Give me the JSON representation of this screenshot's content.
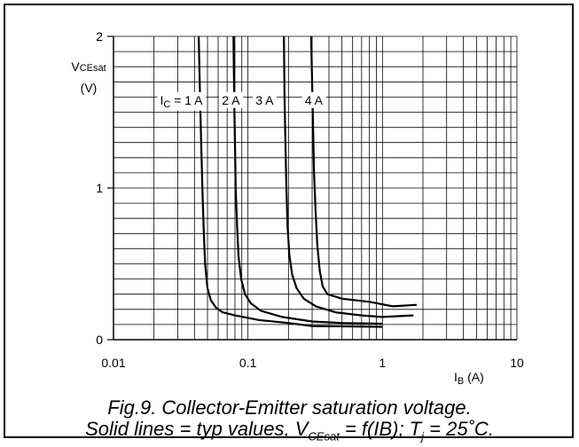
{
  "chart_data": {
    "type": "line",
    "x_scale": "log",
    "xlim": [
      0.01,
      10
    ],
    "ylim": [
      0,
      2
    ],
    "x_ticks": [
      "0.01",
      "0.1",
      "1",
      "10"
    ],
    "y_ticks": [
      "0",
      "1",
      "2"
    ],
    "xlabel_main": "I",
    "xlabel_sub": "B",
    "xlabel_unit": " (A)",
    "ylabel_main": "V",
    "ylabel_sub": "CEsat",
    "ylabel_unit": "(V)",
    "grid": true,
    "series_labels": [
      {
        "prefix": "I",
        "sub": "C",
        "text": " = 1 A",
        "x": 0.046
      },
      {
        "prefix": "",
        "sub": "",
        "text": "2 A",
        "x": 0.087
      },
      {
        "prefix": "",
        "sub": "",
        "text": "3 A",
        "x": 0.155
      },
      {
        "prefix": "",
        "sub": "",
        "text": "4 A",
        "x": 0.36
      }
    ],
    "series_label_y": 1.58,
    "series": [
      {
        "name": "1 A",
        "points": [
          [
            0.043,
            2.0
          ],
          [
            0.044,
            1.6
          ],
          [
            0.045,
            1.25
          ],
          [
            0.046,
            0.95
          ],
          [
            0.047,
            0.7
          ],
          [
            0.048,
            0.5
          ],
          [
            0.05,
            0.34
          ],
          [
            0.053,
            0.26
          ],
          [
            0.058,
            0.21
          ],
          [
            0.065,
            0.18
          ],
          [
            0.08,
            0.16
          ],
          [
            0.12,
            0.13
          ],
          [
            0.2,
            0.11
          ],
          [
            0.3,
            0.09
          ],
          [
            1.0,
            0.085
          ]
        ]
      },
      {
        "name": "2 A",
        "points": [
          [
            0.078,
            2.0
          ],
          [
            0.079,
            1.6
          ],
          [
            0.08,
            1.3
          ],
          [
            0.081,
            1.0
          ],
          [
            0.083,
            0.75
          ],
          [
            0.085,
            0.55
          ],
          [
            0.089,
            0.4
          ],
          [
            0.095,
            0.3
          ],
          [
            0.105,
            0.24
          ],
          [
            0.125,
            0.19
          ],
          [
            0.18,
            0.15
          ],
          [
            0.3,
            0.12
          ],
          [
            0.5,
            0.11
          ],
          [
            1.0,
            0.105
          ]
        ]
      },
      {
        "name": "3 A",
        "points": [
          [
            0.185,
            2.0
          ],
          [
            0.187,
            1.6
          ],
          [
            0.19,
            1.3
          ],
          [
            0.193,
            1.0
          ],
          [
            0.197,
            0.75
          ],
          [
            0.203,
            0.56
          ],
          [
            0.213,
            0.43
          ],
          [
            0.23,
            0.34
          ],
          [
            0.26,
            0.27
          ],
          [
            0.32,
            0.22
          ],
          [
            0.45,
            0.18
          ],
          [
            0.7,
            0.16
          ],
          [
            1.0,
            0.15
          ],
          [
            1.7,
            0.16
          ]
        ]
      },
      {
        "name": "4 A",
        "points": [
          [
            0.295,
            2.0
          ],
          [
            0.3,
            1.7
          ],
          [
            0.305,
            1.4
          ],
          [
            0.31,
            1.1
          ],
          [
            0.318,
            0.85
          ],
          [
            0.328,
            0.62
          ],
          [
            0.342,
            0.45
          ],
          [
            0.36,
            0.35
          ],
          [
            0.39,
            0.3
          ],
          [
            0.5,
            0.27
          ],
          [
            0.8,
            0.25
          ],
          [
            1.2,
            0.22
          ],
          [
            1.8,
            0.23
          ]
        ]
      }
    ]
  },
  "caption": {
    "line1": "Fig.9.   Collector-Emitter saturation voltage.",
    "line2_a": "Solid lines = typ values, V",
    "line2_sub1": "CEsat",
    "line2_b": " = f(IB); T",
    "line2_sub2": "j",
    "line2_c": " = 25˚C."
  }
}
